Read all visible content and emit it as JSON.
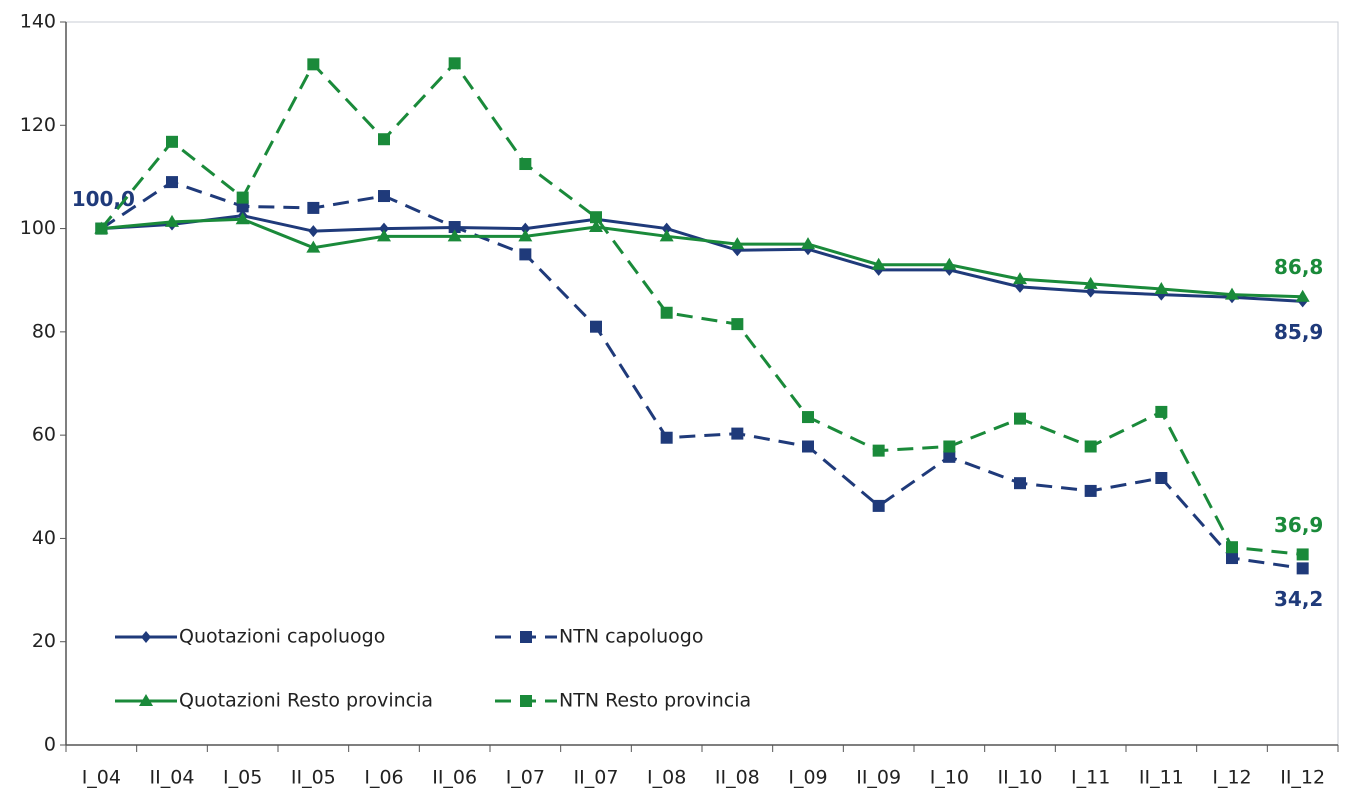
{
  "chart_data": {
    "type": "line",
    "categories": [
      "I_04",
      "II_04",
      "I_05",
      "II_05",
      "I_06",
      "II_06",
      "I_07",
      "II_07",
      "I_08",
      "II_08",
      "I_09",
      "II_09",
      "I_10",
      "II_10",
      "I_11",
      "II_11",
      "I_12",
      "II_12"
    ],
    "series": [
      {
        "name": "Quotazioni capoluogo",
        "color": "#1f3a7a",
        "line_style": "solid",
        "marker": "diamond",
        "values": [
          100,
          100.8,
          102.5,
          99.5,
          100,
          100.2,
          100,
          101.8,
          100,
          95.8,
          96,
          92,
          92,
          88.7,
          87.8,
          87.2,
          86.7,
          85.9
        ],
        "value_labels": [
          null,
          null,
          null,
          null,
          null,
          null,
          null,
          null,
          null,
          null,
          null,
          null,
          null,
          null,
          null,
          null,
          null,
          "85,9"
        ]
      },
      {
        "name": "NTN capoluogo",
        "color": "#1f3a7a",
        "line_style": "dashed",
        "marker": "square",
        "values": [
          100,
          109,
          104.3,
          104,
          106.3,
          100.3,
          95,
          81,
          59.5,
          60.3,
          57.8,
          46.3,
          55.8,
          50.7,
          49.2,
          51.7,
          36.2,
          34.2
        ],
        "value_labels": [
          "100,0",
          null,
          null,
          null,
          null,
          null,
          null,
          null,
          null,
          null,
          null,
          null,
          null,
          null,
          null,
          null,
          null,
          "34,2"
        ]
      },
      {
        "name": "Quotazioni Resto provincia",
        "color": "#1a8a3a",
        "line_style": "solid",
        "marker": "triangle",
        "values": [
          100,
          101.3,
          101.8,
          96.3,
          98.5,
          98.5,
          98.5,
          100.3,
          98.5,
          97,
          97,
          93,
          93,
          90.2,
          89.3,
          88.3,
          87.2,
          86.8
        ],
        "value_labels": [
          null,
          null,
          null,
          null,
          null,
          null,
          null,
          null,
          null,
          null,
          null,
          null,
          null,
          null,
          null,
          null,
          null,
          "86,8"
        ]
      },
      {
        "name": "NTN Resto provincia",
        "color": "#1a8a3a",
        "line_style": "dashed",
        "marker": "square",
        "values": [
          100,
          116.8,
          106,
          131.8,
          117.3,
          132,
          112.5,
          102.2,
          83.7,
          81.5,
          63.5,
          57,
          57.8,
          63.2,
          57.8,
          64.5,
          38.3,
          36.9
        ],
        "value_labels": [
          null,
          null,
          null,
          null,
          null,
          null,
          null,
          null,
          null,
          null,
          null,
          null,
          null,
          null,
          null,
          null,
          null,
          "36,9"
        ]
      }
    ],
    "ylim": [
      0,
      140
    ],
    "yticks": [
      0,
      20,
      40,
      60,
      80,
      100,
      120,
      140
    ],
    "grid": false,
    "legend": "lower left"
  }
}
